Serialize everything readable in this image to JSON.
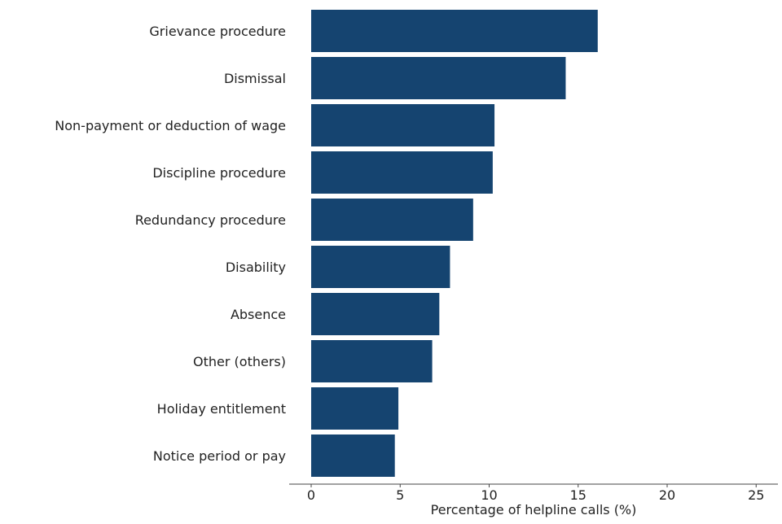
{
  "chart_data": {
    "type": "bar",
    "orientation": "horizontal",
    "categories": [
      "Grievance procedure",
      "Dismissal",
      "Non-payment or deduction of wage",
      "Discipline procedure",
      "Redundancy procedure",
      "Disability",
      "Absence",
      "Other (others)",
      "Holiday entitlement",
      "Notice period or pay"
    ],
    "values": [
      16.1,
      14.3,
      10.3,
      10.2,
      9.1,
      7.8,
      7.2,
      6.8,
      4.9,
      4.7
    ],
    "xlabel": "Percentage of helpline calls (%)",
    "ylabel": "",
    "xlim": [
      0,
      25
    ],
    "xticks": [
      "0",
      "5",
      "10",
      "15",
      "20",
      "25"
    ],
    "grid": false,
    "bar_color": "#154470"
  }
}
